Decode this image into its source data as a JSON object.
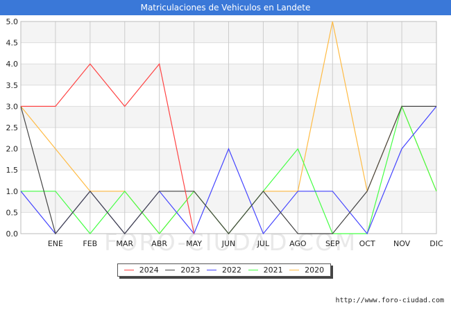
{
  "title": "Matriculaciones de Vehiculos en Landete",
  "watermark": "FORO-CIUDAD.COM",
  "source": "http://www.foro-ciudad.com",
  "chart_data": {
    "type": "line",
    "categories": [
      "",
      "ENE",
      "FEB",
      "MAR",
      "ABR",
      "MAY",
      "JUN",
      "JUL",
      "AGO",
      "SEP",
      "OCT",
      "NOV",
      "DIC"
    ],
    "ylim": [
      0,
      5
    ],
    "yticks": [
      "0.0",
      "0.5",
      "1.0",
      "1.5",
      "2.0",
      "2.5",
      "3.0",
      "3.5",
      "4.0",
      "4.5",
      "5.0"
    ],
    "grid": true,
    "legend_position": "bottom",
    "series": [
      {
        "name": "2024",
        "color": "#ff4444",
        "values": [
          3,
          3,
          4,
          3,
          4,
          0,
          null,
          null,
          null,
          null,
          null,
          null,
          null
        ]
      },
      {
        "name": "2023",
        "color": "#444444",
        "values": [
          3,
          0,
          1,
          0,
          1,
          1,
          0,
          1,
          0,
          0,
          1,
          3,
          3
        ]
      },
      {
        "name": "2022",
        "color": "#4444ff",
        "values": [
          1,
          0,
          1,
          0,
          1,
          0,
          2,
          0,
          1,
          1,
          0,
          2,
          3
        ]
      },
      {
        "name": "2021",
        "color": "#44ff44",
        "values": [
          1,
          1,
          0,
          1,
          0,
          1,
          0,
          1,
          2,
          0,
          0,
          3,
          1
        ]
      },
      {
        "name": "2020",
        "color": "#ffbb44",
        "values": [
          3,
          2,
          1,
          1,
          0,
          1,
          0,
          1,
          1,
          5,
          1,
          3,
          1
        ]
      }
    ]
  }
}
